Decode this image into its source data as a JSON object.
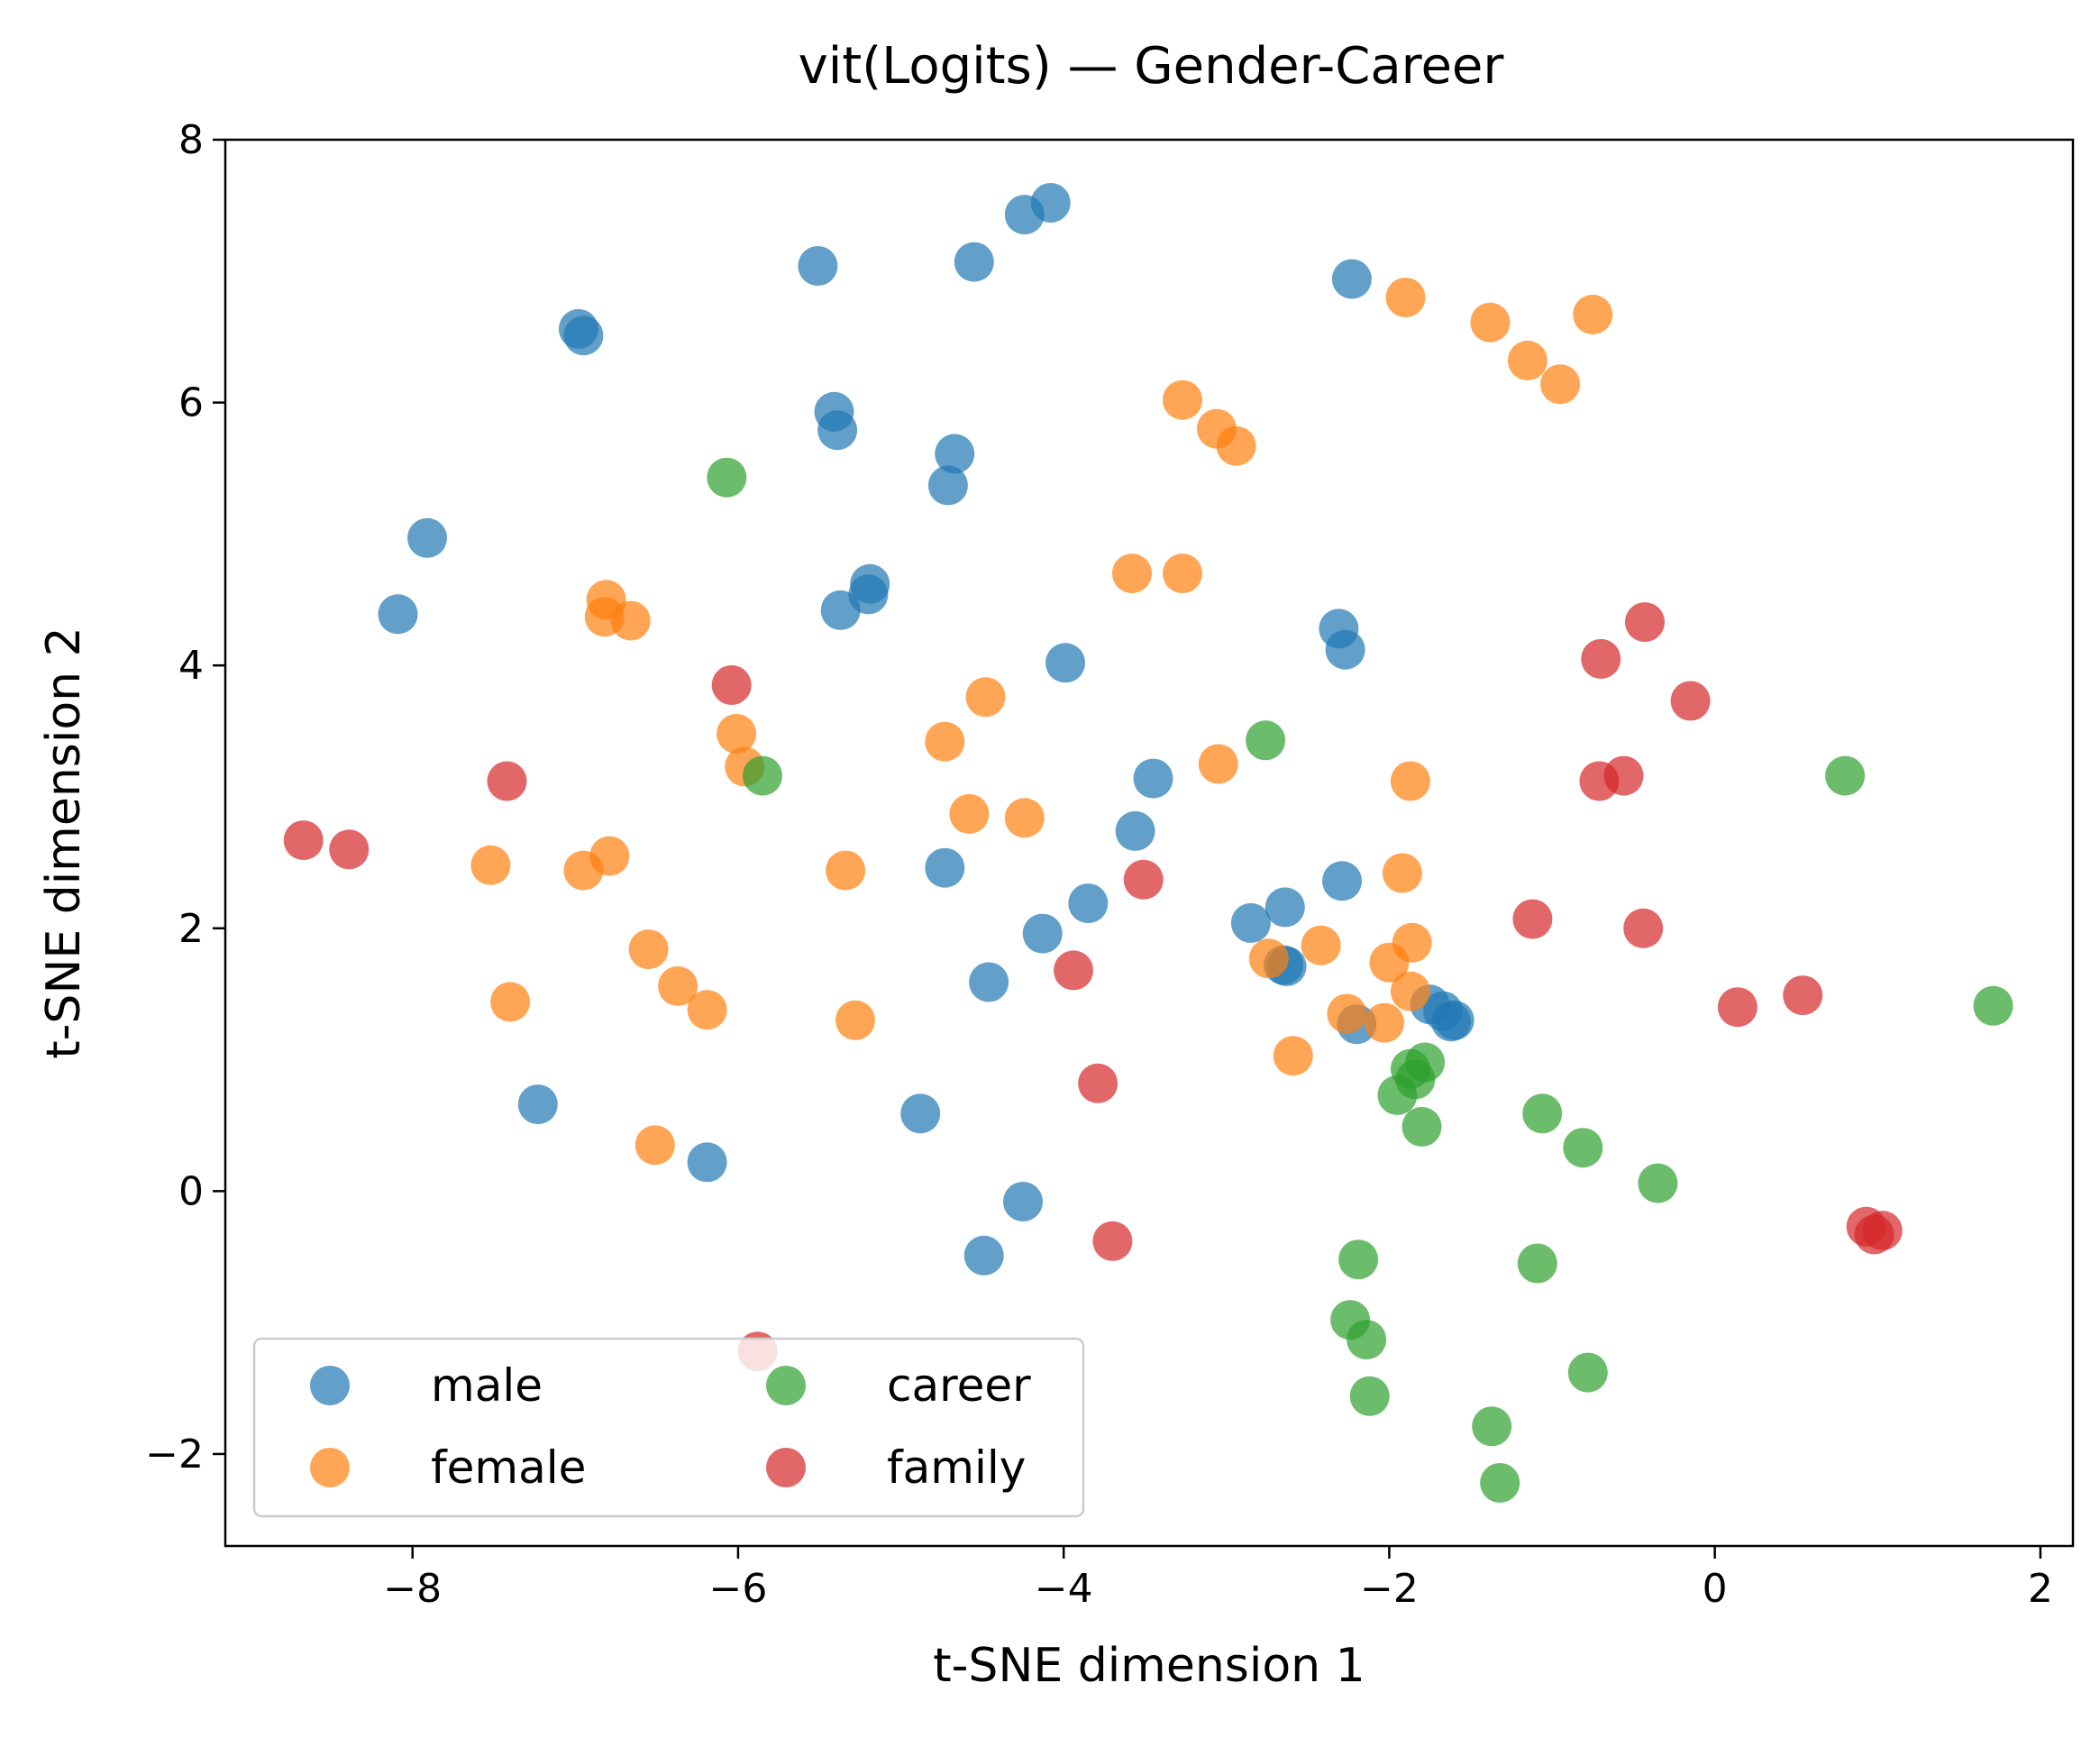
{
  "chart_data": {
    "type": "scatter",
    "title": "vit(Logits) — Gender-Career",
    "xlabel": "t-SNE dimension 1",
    "ylabel": "t-SNE dimension 2",
    "xlim": [
      -9.15,
      2.2
    ],
    "ylim": [
      -2.7,
      8.0
    ],
    "xticks": [
      {
        "value": -8,
        "label": "−8"
      },
      {
        "value": -6,
        "label": "−6"
      },
      {
        "value": -4,
        "label": "−4"
      },
      {
        "value": -2,
        "label": "−2"
      },
      {
        "value": 0,
        "label": "0"
      },
      {
        "value": 2,
        "label": "2"
      }
    ],
    "yticks": [
      {
        "value": -2,
        "label": "−2"
      },
      {
        "value": 0,
        "label": "0"
      },
      {
        "value": 2,
        "label": "2"
      },
      {
        "value": 4,
        "label": "4"
      },
      {
        "value": 6,
        "label": "6"
      },
      {
        "value": 8,
        "label": "8"
      }
    ],
    "grid": false,
    "legend_position": "lower-left",
    "legend_columns": 2,
    "series": [
      {
        "name": "male",
        "color": "#1f77b4",
        "points": [
          [
            -4.08,
            7.52
          ],
          [
            -4.24,
            7.43
          ],
          [
            -5.51,
            7.04
          ],
          [
            -4.55,
            7.07
          ],
          [
            -2.23,
            6.94
          ],
          [
            -6.98,
            6.56
          ],
          [
            -6.95,
            6.51
          ],
          [
            -5.41,
            5.93
          ],
          [
            -5.39,
            5.79
          ],
          [
            -4.67,
            5.61
          ],
          [
            -4.71,
            5.37
          ],
          [
            -7.91,
            4.97
          ],
          [
            -8.09,
            4.39
          ],
          [
            -5.19,
            4.62
          ],
          [
            -5.2,
            4.54
          ],
          [
            -5.37,
            4.42
          ],
          [
            -3.99,
            4.02
          ],
          [
            -2.31,
            4.28
          ],
          [
            -2.27,
            4.12
          ],
          [
            -3.45,
            3.14
          ],
          [
            -3.56,
            2.74
          ],
          [
            -4.73,
            2.46
          ],
          [
            -2.29,
            2.36
          ],
          [
            -3.85,
            2.19
          ],
          [
            -2.64,
            2.16
          ],
          [
            -2.85,
            2.04
          ],
          [
            -4.13,
            1.96
          ],
          [
            -2.63,
            1.71
          ],
          [
            -2.65,
            1.72
          ],
          [
            -4.46,
            1.59
          ],
          [
            -1.75,
            1.42
          ],
          [
            -1.67,
            1.37
          ],
          [
            -1.6,
            1.3
          ],
          [
            -1.62,
            1.29
          ],
          [
            -2.2,
            1.27
          ],
          [
            -7.23,
            0.66
          ],
          [
            -4.88,
            0.59
          ],
          [
            -6.19,
            0.22
          ],
          [
            -4.25,
            -0.08
          ],
          [
            -4.49,
            -0.49
          ]
        ]
      },
      {
        "name": "female",
        "color": "#ff7f0e",
        "points": [
          [
            -1.9,
            6.8
          ],
          [
            -0.75,
            6.67
          ],
          [
            -1.38,
            6.61
          ],
          [
            -1.15,
            6.32
          ],
          [
            -0.95,
            6.14
          ],
          [
            -3.27,
            6.02
          ],
          [
            -3.06,
            5.8
          ],
          [
            -2.94,
            5.67
          ],
          [
            -3.58,
            4.7
          ],
          [
            -3.27,
            4.7
          ],
          [
            -6.81,
            4.5
          ],
          [
            -6.82,
            4.37
          ],
          [
            -6.66,
            4.34
          ],
          [
            -4.48,
            3.76
          ],
          [
            -6.01,
            3.48
          ],
          [
            -5.96,
            3.23
          ],
          [
            -4.73,
            3.42
          ],
          [
            -3.05,
            3.25
          ],
          [
            -1.87,
            3.12
          ],
          [
            -4.58,
            2.87
          ],
          [
            -4.24,
            2.84
          ],
          [
            -6.79,
            2.55
          ],
          [
            -6.95,
            2.44
          ],
          [
            -7.52,
            2.48
          ],
          [
            -5.34,
            2.44
          ],
          [
            -1.92,
            2.42
          ],
          [
            -2.42,
            1.87
          ],
          [
            -1.86,
            1.89
          ],
          [
            -2.74,
            1.77
          ],
          [
            -2.0,
            1.74
          ],
          [
            -1.87,
            1.52
          ],
          [
            -6.55,
            1.84
          ],
          [
            -6.37,
            1.56
          ],
          [
            -6.19,
            1.38
          ],
          [
            -7.4,
            1.44
          ],
          [
            -5.28,
            1.3
          ],
          [
            -2.26,
            1.35
          ],
          [
            -2.03,
            1.28
          ],
          [
            -2.59,
            1.03
          ],
          [
            -6.51,
            0.35
          ]
        ]
      },
      {
        "name": "career",
        "color": "#2ca02c",
        "points": [
          [
            -6.07,
            5.43
          ],
          [
            -5.85,
            3.16
          ],
          [
            -2.76,
            3.43
          ],
          [
            0.8,
            3.16
          ],
          [
            1.71,
            1.41
          ],
          [
            -1.78,
            0.98
          ],
          [
            -1.87,
            0.93
          ],
          [
            -1.84,
            0.85
          ],
          [
            -1.95,
            0.73
          ],
          [
            -1.8,
            0.49
          ],
          [
            -1.06,
            0.59
          ],
          [
            -0.81,
            0.33
          ],
          [
            -0.35,
            0.06
          ],
          [
            -2.19,
            -0.52
          ],
          [
            -1.09,
            -0.55
          ],
          [
            -2.24,
            -0.98
          ],
          [
            -2.14,
            -1.13
          ],
          [
            -0.78,
            -1.38
          ],
          [
            -2.12,
            -1.56
          ],
          [
            -1.37,
            -1.79
          ],
          [
            -1.32,
            -2.22
          ]
        ]
      },
      {
        "name": "family",
        "color": "#d62728",
        "points": [
          [
            -0.43,
            4.33
          ],
          [
            -0.7,
            4.05
          ],
          [
            -0.15,
            3.73
          ],
          [
            -6.04,
            3.85
          ],
          [
            -7.42,
            3.12
          ],
          [
            -0.56,
            3.16
          ],
          [
            -0.71,
            3.12
          ],
          [
            -8.67,
            2.67
          ],
          [
            -8.39,
            2.6
          ],
          [
            -3.51,
            2.37
          ],
          [
            -1.12,
            2.07
          ],
          [
            -0.44,
            2.0
          ],
          [
            -3.94,
            1.68
          ],
          [
            0.14,
            1.4
          ],
          [
            0.54,
            1.49
          ],
          [
            -3.79,
            0.82
          ],
          [
            -3.7,
            -0.38
          ],
          [
            0.93,
            -0.27
          ],
          [
            1.03,
            -0.3
          ],
          [
            0.98,
            -0.33
          ],
          [
            -5.88,
            -1.22
          ]
        ]
      }
    ]
  }
}
